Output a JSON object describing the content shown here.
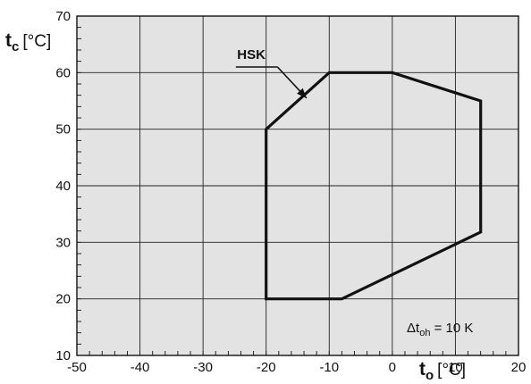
{
  "chart_data": {
    "type": "area",
    "x": {
      "symbol": "t",
      "subscript": "o",
      "unit": "[°C]",
      "range": [
        -50,
        20
      ],
      "ticks": [
        -50,
        -40,
        -30,
        -20,
        -10,
        0,
        10,
        20
      ],
      "tick_labels": [
        "-50",
        "-40",
        "-30",
        "-20",
        "-10",
        "0",
        "10",
        "20"
      ]
    },
    "y": {
      "symbol": "t",
      "subscript": "c",
      "unit": "[°C]",
      "range": [
        10,
        70
      ],
      "ticks": [
        10,
        20,
        30,
        40,
        50,
        60,
        70
      ],
      "tick_labels": [
        "10",
        "20",
        "30",
        "40",
        "50",
        "60",
        "70"
      ]
    },
    "grid": true,
    "background": "#e3e3e3",
    "series": [
      {
        "name": "HSK",
        "color": "#111111",
        "closed": true,
        "points": [
          [
            -20,
            20
          ],
          [
            -8,
            20
          ],
          [
            14,
            31.8
          ],
          [
            14,
            55
          ],
          [
            0,
            60
          ],
          [
            -10,
            60
          ],
          [
            -20,
            50
          ],
          [
            -20,
            20
          ]
        ]
      }
    ],
    "annotation": {
      "delta": "Δ",
      "symbol": "t",
      "subscript": "oh",
      "rest": " = 10 K"
    }
  }
}
